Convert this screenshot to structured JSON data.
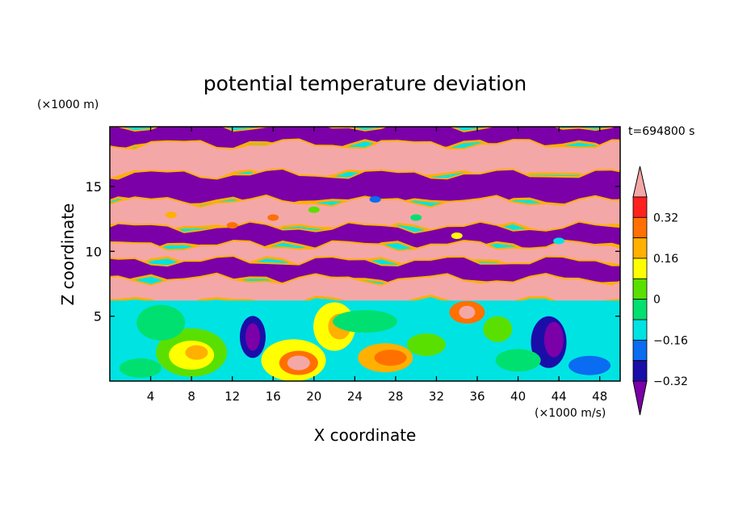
{
  "chart_data": {
    "type": "heatmap",
    "title": "potential temperature deviation",
    "xlabel": "X coordinate",
    "ylabel": "Z coordinate",
    "x_unit": "(×1000 m/s)",
    "y_unit": "(×1000 m)",
    "time_label": "t=694800 s",
    "xlim": [
      0,
      50
    ],
    "ylim": [
      0,
      19.6
    ],
    "x_ticks": [
      "4",
      "8",
      "12",
      "16",
      "20",
      "24",
      "28",
      "32",
      "36",
      "40",
      "44",
      "48"
    ],
    "y_ticks": [
      "5",
      "10",
      "15"
    ],
    "colorbar": {
      "levels": [
        -0.4,
        -0.32,
        -0.24,
        -0.16,
        -0.08,
        0,
        0.08,
        0.16,
        0.24,
        0.32,
        0.4
      ],
      "labels": [
        "0.32",
        "0.16",
        "0",
        "−0.16",
        "−0.32"
      ],
      "colors": [
        "#7b00a8",
        "#1a0ea8",
        "#0a6cf0",
        "#00e3e3",
        "#00e070",
        "#5ae000",
        "#ffff00",
        "#ffb000",
        "#ff7000",
        "#ff2020",
        "#f4a7a7"
      ],
      "extend": "both"
    },
    "structure": {
      "upper_layer": "alternating positive (pink, >0.4) and negative (purple, <−0.4) horizontal bands from about 6 to 19.6 ×1000 m",
      "lower_layer": "turbulent eddies near neutral values (cyan/green/yellow) below about 6 ×1000 m, with warm cores near x≈8, 18, 27 and cold eddies near x≈14, 43"
    }
  }
}
